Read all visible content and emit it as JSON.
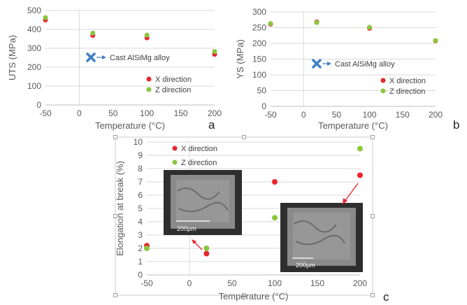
{
  "chart_data": [
    {
      "panel": "a",
      "type": "scatter",
      "xlabel": "Temperature (°C)",
      "ylabel": "UTS (MPa)",
      "xlim": [
        -50,
        200
      ],
      "ylim": [
        0,
        500
      ],
      "xticks": [
        -50,
        0,
        50,
        100,
        150,
        200
      ],
      "yticks": [
        0,
        100,
        200,
        300,
        400,
        500
      ],
      "grid": true,
      "legend_position": "bottom-right",
      "series": [
        {
          "name": "X direction",
          "color": "#e8262d",
          "x": [
            -50,
            20,
            100,
            200
          ],
          "y": [
            450,
            368,
            355,
            268
          ]
        },
        {
          "name": "Z direction",
          "color": "#8cc63f",
          "x": [
            -50,
            20,
            100,
            200
          ],
          "y": [
            462,
            380,
            370,
            283
          ]
        }
      ],
      "annotation": {
        "label": "Cast AlSiMg alloy",
        "x": 20,
        "y": 258,
        "marker": "x-cross",
        "color": "#3d7fc4"
      }
    },
    {
      "panel": "b",
      "type": "scatter",
      "xlabel": "Temperature (°C)",
      "ylabel": "YS (MPa)",
      "xlim": [
        -50,
        200
      ],
      "ylim": [
        0,
        300
      ],
      "xticks": [
        -50,
        0,
        50,
        100,
        150,
        200
      ],
      "yticks": [
        0,
        50,
        100,
        150,
        200,
        250,
        300
      ],
      "grid": true,
      "legend_position": "bottom-right",
      "series": [
        {
          "name": "X direction",
          "color": "#e8262d",
          "x": [
            -50,
            20,
            100,
            200
          ],
          "y": [
            261,
            268,
            248,
            208
          ]
        },
        {
          "name": "Z direction",
          "color": "#8cc63f",
          "x": [
            -50,
            20,
            100,
            200
          ],
          "y": [
            263,
            266,
            251,
            209
          ]
        }
      ],
      "annotation": {
        "label": "Cast AlSiMg alloy",
        "x": 20,
        "y": 133,
        "marker": "x-cross",
        "color": "#3d7fc4"
      }
    },
    {
      "panel": "c",
      "type": "scatter",
      "xlabel": "Temperature (°C)",
      "ylabel": "Elongation at break (%)",
      "xlim": [
        -50,
        200
      ],
      "ylim": [
        0,
        10
      ],
      "xticks": [
        -50,
        0,
        50,
        100,
        150,
        200
      ],
      "yticks": [
        0,
        1,
        2,
        3,
        4,
        5,
        6,
        7,
        8,
        9,
        10
      ],
      "grid": true,
      "legend_position": "top-left",
      "series": [
        {
          "name": "X direction",
          "color": "#e8262d",
          "x": [
            -50,
            20,
            100,
            200
          ],
          "y": [
            2.2,
            1.6,
            7.0,
            7.5
          ]
        },
        {
          "name": "Z direction",
          "color": "#8cc63f",
          "x": [
            -50,
            20,
            100,
            200
          ],
          "y": [
            2.0,
            2.0,
            4.3,
            9.5
          ]
        }
      ],
      "insets": [
        {
          "scale_label": "200µm"
        },
        {
          "scale_label": "200µm"
        }
      ]
    }
  ],
  "colors": {
    "x_series": "#e8262d",
    "z_series": "#8cc63f",
    "annotation": "#3d7fc4",
    "grid": "#d9d9d9"
  }
}
